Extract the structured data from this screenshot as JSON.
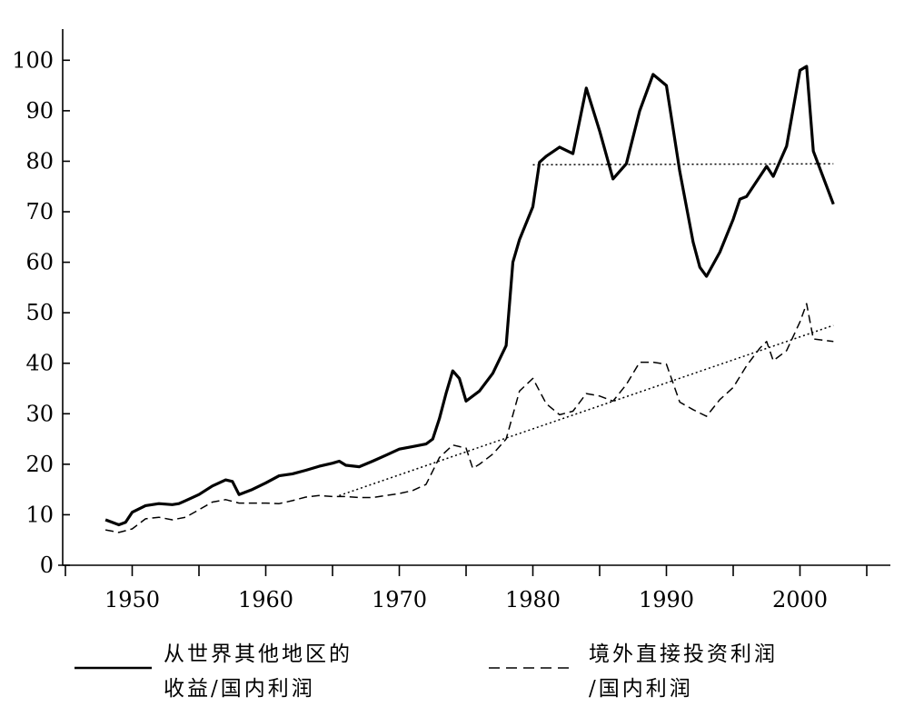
{
  "chart_data": {
    "type": "line",
    "title": "",
    "xlabel": "",
    "ylabel": "",
    "xlim": [
      1945,
      2005
    ],
    "ylim": [
      0,
      105
    ],
    "x_ticks": [
      1950,
      1960,
      1970,
      1980,
      1990,
      2000
    ],
    "y_ticks": [
      0,
      10,
      20,
      30,
      40,
      50,
      60,
      70,
      80,
      90,
      100
    ],
    "x_tick_labels": [
      "1950",
      "1960",
      "1970",
      "1980",
      "1990",
      "2000"
    ],
    "y_tick_labels": [
      "0",
      "10",
      "20",
      "30",
      "40",
      "50",
      "60",
      "70",
      "80",
      "90",
      "100"
    ],
    "grid": false,
    "legend_position": "bottom",
    "series": [
      {
        "name": "从世界其他地区的收益/国内利润",
        "legend_lines": [
          "从世界其他地区的",
          "收益/国内利润"
        ],
        "style": "solid",
        "points": [
          [
            1948,
            9
          ],
          [
            1948.5,
            8.5
          ],
          [
            1949,
            8
          ],
          [
            1949.5,
            8.5
          ],
          [
            1950,
            10.5
          ],
          [
            1951,
            11.8
          ],
          [
            1952,
            12.2
          ],
          [
            1953,
            12
          ],
          [
            1953.5,
            12.2
          ],
          [
            1954,
            12.8
          ],
          [
            1955,
            14
          ],
          [
            1956,
            15.7
          ],
          [
            1957,
            16.9
          ],
          [
            1957.5,
            16.6
          ],
          [
            1958,
            14
          ],
          [
            1959,
            15
          ],
          [
            1960,
            16.3
          ],
          [
            1961,
            17.7
          ],
          [
            1962,
            18.1
          ],
          [
            1963,
            18.8
          ],
          [
            1964,
            19.6
          ],
          [
            1965,
            20.2
          ],
          [
            1965.5,
            20.6
          ],
          [
            1966,
            19.8
          ],
          [
            1967,
            19.5
          ],
          [
            1968,
            20.6
          ],
          [
            1969,
            21.8
          ],
          [
            1970,
            23
          ],
          [
            1971,
            23.5
          ],
          [
            1972,
            24
          ],
          [
            1972.5,
            25
          ],
          [
            1973,
            29
          ],
          [
            1973.5,
            34
          ],
          [
            1974,
            38.5
          ],
          [
            1974.5,
            37
          ],
          [
            1975,
            32.5
          ],
          [
            1976,
            34.5
          ],
          [
            1977,
            38
          ],
          [
            1978,
            43.5
          ],
          [
            1978.5,
            60
          ],
          [
            1979,
            64.5
          ],
          [
            1980,
            71
          ],
          [
            1980.5,
            79.8
          ],
          [
            1981,
            81
          ],
          [
            1982,
            82.8
          ],
          [
            1983,
            81.5
          ],
          [
            1984,
            94.5
          ],
          [
            1985,
            86
          ],
          [
            1986,
            76.5
          ],
          [
            1987,
            79.5
          ],
          [
            1988,
            90
          ],
          [
            1989,
            97.2
          ],
          [
            1990,
            95
          ],
          [
            1991,
            78
          ],
          [
            1992,
            64
          ],
          [
            1992.5,
            59
          ],
          [
            1993,
            57.2
          ],
          [
            1994,
            62
          ],
          [
            1995,
            68.5
          ],
          [
            1995.5,
            72.5
          ],
          [
            1996,
            73
          ],
          [
            1997,
            77
          ],
          [
            1997.5,
            79
          ],
          [
            1998,
            77
          ],
          [
            1999,
            83
          ],
          [
            2000,
            98
          ],
          [
            2000.5,
            98.8
          ],
          [
            2001,
            82
          ],
          [
            2002.5,
            71.5
          ]
        ]
      },
      {
        "name": "境外直接投资利润/国内利润",
        "legend_lines": [
          "境外直接投资利润",
          "/国内利润"
        ],
        "style": "dashed",
        "points": [
          [
            1948,
            7
          ],
          [
            1949,
            6.5
          ],
          [
            1950,
            7.2
          ],
          [
            1951,
            9.2
          ],
          [
            1952,
            9.5
          ],
          [
            1953,
            9
          ],
          [
            1954,
            9.5
          ],
          [
            1955,
            11
          ],
          [
            1956,
            12.5
          ],
          [
            1957,
            13
          ],
          [
            1958,
            12.3
          ],
          [
            1959,
            12.3
          ],
          [
            1960,
            12.3
          ],
          [
            1961,
            12.2
          ],
          [
            1962,
            12.8
          ],
          [
            1963,
            13.5
          ],
          [
            1964,
            13.8
          ],
          [
            1965,
            13.6
          ],
          [
            1966,
            13.6
          ],
          [
            1967,
            13.4
          ],
          [
            1968,
            13.4
          ],
          [
            1969,
            13.8
          ],
          [
            1970,
            14.2
          ],
          [
            1971,
            14.8
          ],
          [
            1972,
            16
          ],
          [
            1973,
            21.3
          ],
          [
            1974,
            23.8
          ],
          [
            1975,
            23.2
          ],
          [
            1975.5,
            19.2
          ],
          [
            1976,
            20
          ],
          [
            1977,
            22
          ],
          [
            1978,
            25
          ],
          [
            1979,
            34.5
          ],
          [
            1980,
            37
          ],
          [
            1981,
            32
          ],
          [
            1982,
            29.8
          ],
          [
            1983,
            30.5
          ],
          [
            1984,
            34
          ],
          [
            1985,
            33.5
          ],
          [
            1986,
            32.5
          ],
          [
            1987,
            35.8
          ],
          [
            1988,
            40.2
          ],
          [
            1989,
            40.2
          ],
          [
            1990,
            39.8
          ],
          [
            1991,
            32.3
          ],
          [
            1992,
            30.8
          ],
          [
            1993,
            29.5
          ],
          [
            1994,
            32.8
          ],
          [
            1995,
            35.2
          ],
          [
            1996,
            39.5
          ],
          [
            1997,
            43
          ],
          [
            1997.5,
            44.3
          ],
          [
            1998,
            40.5
          ],
          [
            1999,
            42.5
          ],
          [
            2000,
            48.2
          ],
          [
            2000.5,
            51.8
          ],
          [
            2001,
            44.8
          ],
          [
            2002.5,
            44.3
          ]
        ]
      }
    ],
    "trend_lines": [
      {
        "style": "dotted",
        "points": [
          [
            1980,
            79.3
          ],
          [
            2002.5,
            79.5
          ]
        ]
      },
      {
        "style": "dotted",
        "points": [
          [
            1965.5,
            13.8
          ],
          [
            2002.5,
            47.5
          ]
        ]
      }
    ]
  }
}
